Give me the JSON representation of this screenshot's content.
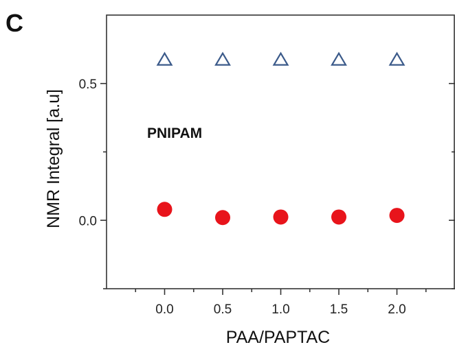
{
  "chart_data": {
    "type": "scatter",
    "panel_label": "C",
    "title": "",
    "xlabel": "PAA/PAPTAC",
    "ylabel": "NMR Integral [a.u]",
    "xlim": [
      -0.5,
      2.5
    ],
    "ylim": [
      -0.25,
      0.75
    ],
    "x_ticks": [
      0.0,
      0.5,
      1.0,
      1.5,
      2.0
    ],
    "x_tick_labels": [
      "0.0",
      "0.5",
      "1.0",
      "1.5",
      "2.0"
    ],
    "y_ticks": [
      0.0,
      0.5
    ],
    "y_tick_labels": [
      "0.0",
      "0.5"
    ],
    "annotation": "PNIPAM",
    "grid": false,
    "legend": "none",
    "series": [
      {
        "marker": "open-triangle",
        "color": "#3b5a8a",
        "x": [
          0.0,
          0.5,
          1.0,
          1.5,
          2.0
        ],
        "y": [
          0.585,
          0.585,
          0.585,
          0.585,
          0.585
        ]
      },
      {
        "marker": "filled-circle",
        "color": "#e8141b",
        "x": [
          0.0,
          0.5,
          1.0,
          1.5,
          2.0
        ],
        "y": [
          0.04,
          0.01,
          0.012,
          0.012,
          0.018
        ]
      }
    ]
  }
}
